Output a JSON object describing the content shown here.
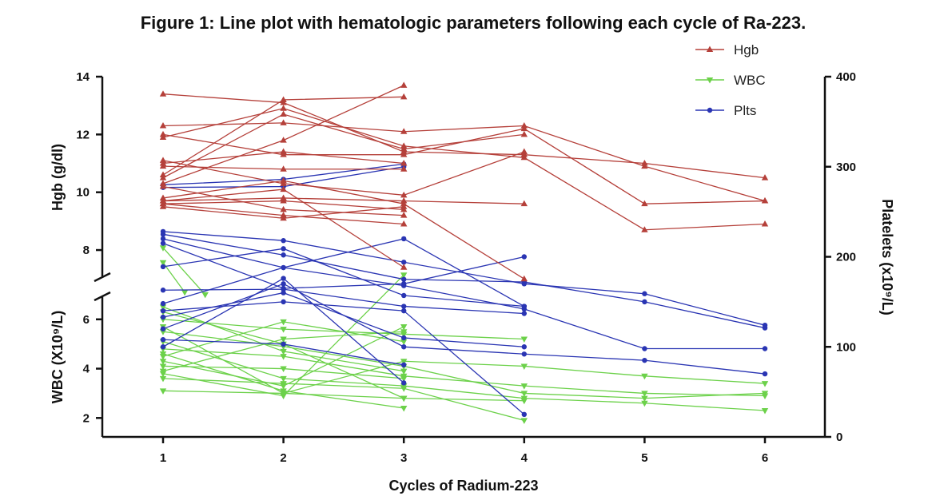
{
  "chart_data": {
    "type": "line",
    "title": "Figure 1: Line plot with hematologic parameters following each cycle of Ra-223.",
    "xlabel": "Cycles of Radium-223",
    "ylabel_left_top": "Hgb (g/dl)",
    "ylabel_left_bottom": "WBC (X10⁹/L)",
    "ylabel_right": "Platelets (x10⁹/L)",
    "x_ticks": [
      "1",
      "2",
      "3",
      "4",
      "5",
      "6"
    ],
    "hgb_axis": {
      "range": [
        7.2,
        14
      ],
      "ticks": [
        "8",
        "10",
        "12",
        "14"
      ]
    },
    "wbc_axis": {
      "range": [
        1.2,
        6.9
      ],
      "ticks": [
        "2",
        "4",
        "6"
      ]
    },
    "plt_axis": {
      "range": [
        0,
        400
      ],
      "ticks": [
        "0",
        "100",
        "200",
        "300",
        "400"
      ]
    },
    "legend": [
      {
        "name": "Hgb",
        "color": "#b5403a",
        "marker": "triangle-up"
      },
      {
        "name": "WBC",
        "color": "#6cd14a",
        "marker": "triangle-down"
      },
      {
        "name": "Plts",
        "color": "#2a35b3",
        "marker": "circle"
      }
    ],
    "series": [
      {
        "name": "Hgb",
        "axis": "hgb",
        "lines": [
          [
            [
              1,
              13.4
            ],
            [
              2,
              13.1
            ],
            [
              3,
              11.4
            ],
            [
              4,
              11.3
            ],
            [
              5,
              11.0
            ],
            [
              6,
              10.5
            ]
          ],
          [
            [
              1,
              12.3
            ],
            [
              2,
              12.4
            ],
            [
              3,
              12.1
            ],
            [
              4,
              12.3
            ],
            [
              5,
              10.9
            ],
            [
              6,
              9.7
            ]
          ],
          [
            [
              1,
              12.0
            ],
            [
              2,
              11.3
            ],
            [
              3,
              11.3
            ],
            [
              4,
              12.2
            ],
            [
              5,
              9.6
            ],
            [
              6,
              9.7
            ]
          ],
          [
            [
              1,
              11.9
            ],
            [
              2,
              12.9
            ],
            [
              3,
              11.6
            ],
            [
              4,
              11.2
            ],
            [
              5,
              8.7
            ],
            [
              6,
              8.9
            ]
          ],
          [
            [
              1,
              10.6
            ],
            [
              2,
              13.2
            ],
            [
              3,
              13.3
            ]
          ],
          [
            [
              1,
              10.3
            ],
            [
              2,
              11.8
            ],
            [
              3,
              13.7
            ]
          ],
          [
            [
              1,
              11.1
            ],
            [
              2,
              10.3
            ],
            [
              3,
              9.9
            ],
            [
              4,
              11.4
            ]
          ],
          [
            [
              1,
              10.5
            ],
            [
              2,
              12.7
            ],
            [
              3,
              11.5
            ],
            [
              4,
              12.0
            ]
          ],
          [
            [
              1,
              11.0
            ],
            [
              2,
              11.4
            ],
            [
              3,
              11.0
            ]
          ],
          [
            [
              1,
              10.9
            ],
            [
              2,
              10.8
            ],
            [
              3,
              10.8
            ]
          ],
          [
            [
              1,
              9.8
            ],
            [
              2,
              10.4
            ],
            [
              3,
              9.6
            ],
            [
              4,
              7.0
            ]
          ],
          [
            [
              1,
              9.7
            ],
            [
              2,
              9.8
            ],
            [
              3,
              9.7
            ],
            [
              4,
              9.6
            ]
          ],
          [
            [
              1,
              9.6
            ],
            [
              2,
              9.2
            ],
            [
              3,
              8.9
            ]
          ],
          [
            [
              1,
              9.6
            ],
            [
              2,
              9.7
            ],
            [
              3,
              9.4
            ]
          ],
          [
            [
              1,
              9.7
            ],
            [
              2,
              10.1
            ],
            [
              3,
              7.4
            ]
          ],
          [
            [
              1,
              10.2
            ],
            [
              2,
              9.4
            ],
            [
              3,
              9.2
            ]
          ],
          [
            [
              1,
              9.5
            ],
            [
              2,
              9.1
            ],
            [
              3,
              9.5
            ]
          ]
        ]
      },
      {
        "name": "WBC",
        "axis": "wbc",
        "lines": [
          [
            [
              1,
              8.9
            ],
            [
              1.35,
              7.0
            ]
          ],
          [
            [
              1,
              8.3
            ],
            [
              1.18,
              7.1
            ]
          ],
          [
            [
              1,
              6.5
            ],
            [
              2,
              4.7
            ],
            [
              3,
              3.9
            ]
          ],
          [
            [
              1,
              6.3
            ],
            [
              2,
              5.0
            ],
            [
              3,
              2.8
            ]
          ],
          [
            [
              1,
              6.0
            ],
            [
              2,
              5.6
            ],
            [
              3,
              5.4
            ],
            [
              4,
              5.2
            ]
          ],
          [
            [
              1,
              5.7
            ],
            [
              2,
              3.0
            ],
            [
              3,
              4.3
            ],
            [
              4,
              4.1
            ],
            [
              5,
              3.7
            ],
            [
              6,
              3.4
            ]
          ],
          [
            [
              1,
              5.5
            ],
            [
              2,
              4.9
            ],
            [
              3,
              4.1
            ],
            [
              4,
              3.0
            ],
            [
              5,
              2.8
            ],
            [
              6,
              3.0
            ]
          ],
          [
            [
              1,
              5.1
            ],
            [
              2,
              3.6
            ],
            [
              3,
              3.3
            ],
            [
              4,
              2.8
            ],
            [
              5,
              2.6
            ],
            [
              6,
              2.3
            ]
          ],
          [
            [
              1,
              4.8
            ],
            [
              2,
              4.5
            ],
            [
              3,
              3.7
            ],
            [
              4,
              3.3
            ],
            [
              5,
              3.0
            ],
            [
              6,
              2.9
            ]
          ],
          [
            [
              1,
              4.6
            ],
            [
              2,
              3.1
            ],
            [
              3,
              2.4
            ]
          ],
          [
            [
              1,
              4.5
            ],
            [
              2,
              5.9
            ],
            [
              3,
              5.1
            ]
          ],
          [
            [
              1,
              4.3
            ],
            [
              2,
              3.3
            ],
            [
              3,
              5.7
            ]
          ],
          [
            [
              1,
              4.1
            ],
            [
              2,
              4.0
            ],
            [
              3,
              3.6
            ]
          ],
          [
            [
              1,
              3.9
            ],
            [
              2,
              5.2
            ],
            [
              3,
              5.5
            ]
          ],
          [
            [
              1,
              3.8
            ],
            [
              2,
              2.9
            ],
            [
              3,
              7.8
            ]
          ],
          [
            [
              1,
              3.6
            ],
            [
              2,
              3.4
            ],
            [
              3,
              3.2
            ],
            [
              4,
              1.9
            ]
          ],
          [
            [
              1,
              3.1
            ],
            [
              2,
              3.0
            ],
            [
              3,
              2.8
            ],
            [
              4,
              2.7
            ]
          ]
        ]
      },
      {
        "name": "Plts",
        "axis": "plt",
        "lines": [
          [
            [
              1,
              280
            ],
            [
              2,
              286
            ],
            [
              3,
              303
            ]
          ],
          [
            [
              1,
              277
            ],
            [
              2,
              278
            ],
            [
              3,
              300
            ]
          ],
          [
            [
              1,
              228
            ],
            [
              2,
              218
            ],
            [
              3,
              194
            ],
            [
              4,
              170
            ],
            [
              5,
              159
            ],
            [
              6,
              124
            ]
          ],
          [
            [
              1,
              225
            ],
            [
              2,
              202
            ],
            [
              3,
              175
            ],
            [
              4,
              172
            ],
            [
              5,
              150
            ],
            [
              6,
              121
            ]
          ],
          [
            [
              1,
              220
            ],
            [
              2,
              188
            ],
            [
              3,
              168
            ],
            [
              4,
              142
            ],
            [
              5,
              98
            ],
            [
              6,
              98
            ]
          ],
          [
            [
              1,
              215
            ],
            [
              2,
              165
            ],
            [
              3,
              170
            ],
            [
              4,
              200
            ]
          ],
          [
            [
              1,
              189
            ],
            [
              2,
              209
            ],
            [
              3,
              157
            ],
            [
              4,
              145
            ]
          ],
          [
            [
              1,
              163
            ],
            [
              2,
              164
            ],
            [
              3,
              145
            ],
            [
              4,
              137
            ]
          ],
          [
            [
              1,
              148
            ],
            [
              2,
              188
            ],
            [
              3,
              220
            ],
            [
              4,
              145
            ]
          ],
          [
            [
              1,
              140
            ],
            [
              2,
              150
            ],
            [
              3,
              140
            ],
            [
              4,
              25
            ]
          ],
          [
            [
              1,
              133
            ],
            [
              2,
              160
            ],
            [
              3,
              110
            ],
            [
              4,
              100
            ]
          ],
          [
            [
              1,
              120
            ],
            [
              2,
              170
            ],
            [
              3,
              100
            ],
            [
              4,
              92
            ],
            [
              5,
              85
            ],
            [
              6,
              70
            ]
          ],
          [
            [
              1,
              108
            ],
            [
              2,
              103
            ],
            [
              3,
              80
            ]
          ],
          [
            [
              1,
              100
            ],
            [
              2,
              176
            ],
            [
              3,
              60
            ]
          ]
        ]
      }
    ]
  }
}
